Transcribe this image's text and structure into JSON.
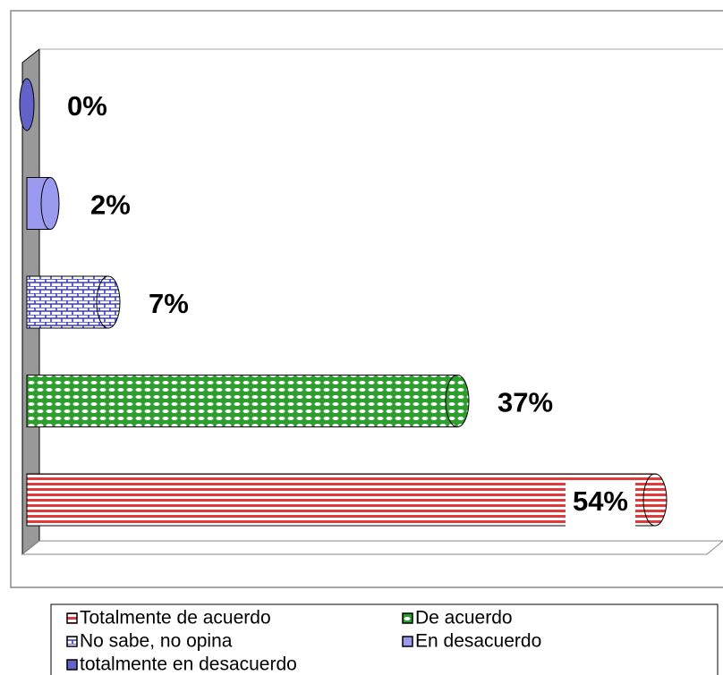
{
  "chart_data": {
    "type": "bar",
    "orientation": "horizontal",
    "xlim": [
      0,
      60
    ],
    "series": [
      {
        "name": "Totalmente de acuerdo",
        "color": "#e03a3a",
        "values": [
          54
        ],
        "value_labels": [
          "54%"
        ]
      },
      {
        "name": "De acuerdo",
        "color": "#2e9e2e",
        "values": [
          37
        ],
        "value_labels": [
          "37%"
        ]
      },
      {
        "name": "No sabe, no opina",
        "color": "#3a3ac8",
        "values": [
          7
        ],
        "value_labels": [
          "7%"
        ]
      },
      {
        "name": "En desacuerdo",
        "color": "#9a9af0",
        "values": [
          2
        ],
        "value_labels": [
          "2%"
        ]
      },
      {
        "name": "totalmente en desacuerdo",
        "color": "#6262c8",
        "values": [
          0
        ],
        "value_labels": [
          "0%"
        ]
      }
    ]
  }
}
